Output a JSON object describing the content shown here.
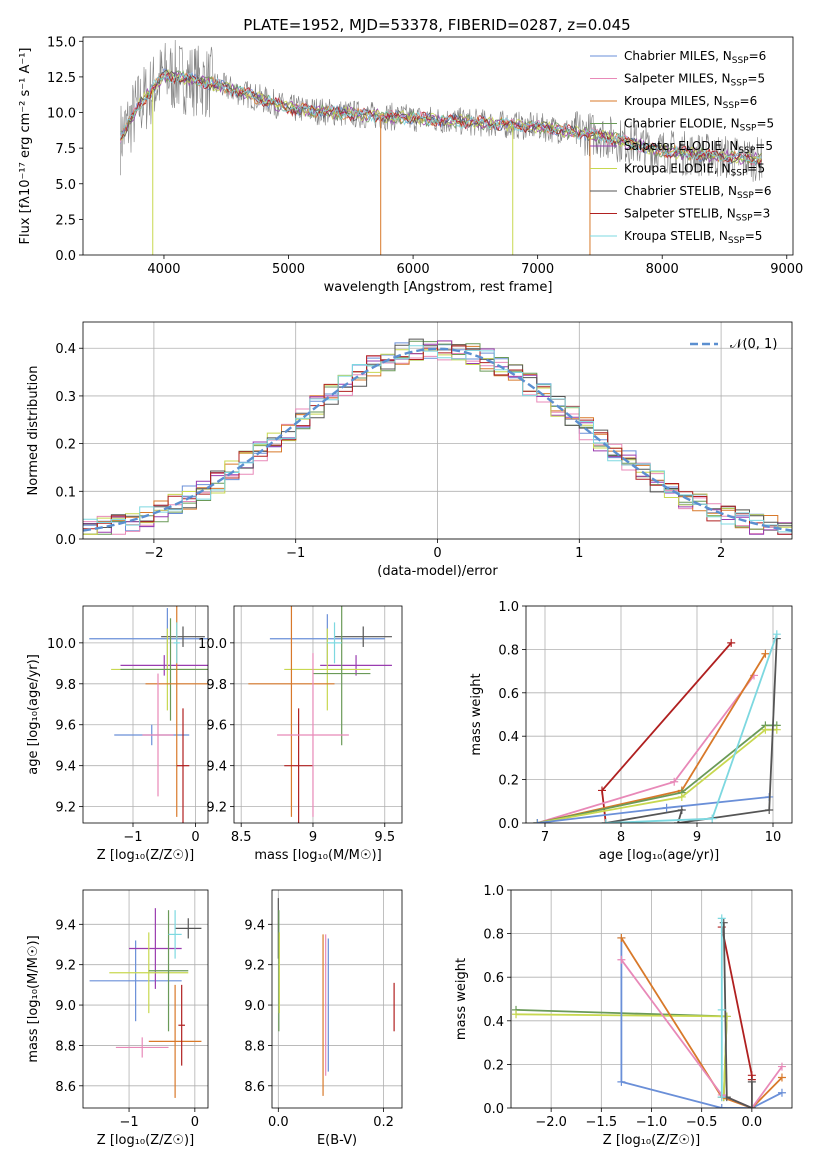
{
  "title": "PLATE=1952, MJD=53378, FIBERID=0287, z=0.045",
  "colors": {
    "cm": "#6a8fd8",
    "sm": "#e889b8",
    "km": "#d8792a",
    "ce": "#6a9a58",
    "se": "#9a3cb0",
    "ke": "#c8d850",
    "cs": "#555555",
    "ss": "#b02020",
    "ks": "#7dd8e0",
    "grid": "#b0b0b0",
    "obs": "#808080"
  },
  "chart_data": [
    {
      "id": "spectrum",
      "type": "line",
      "xlabel": "wavelength [Angstrom, rest frame]",
      "ylabel": "Flux [fλ10⁻¹⁷ erg cm⁻² s⁻¹ A⁻¹]",
      "xlim": [
        3350,
        9050
      ],
      "ylim": [
        0,
        15.3
      ],
      "xticks": [
        4000,
        5000,
        6000,
        7000,
        8000,
        9000
      ],
      "yticks": [
        0.0,
        2.5,
        5.0,
        7.5,
        10.0,
        12.5,
        15.0
      ],
      "grid": false,
      "legend_position": "top-right",
      "legend": [
        {
          "key": "cm",
          "label": "Chabrier MILES, N",
          "sub": "SSP",
          "tail": "=6"
        },
        {
          "key": "sm",
          "label": "Salpeter MILES, N",
          "sub": "SSP",
          "tail": "=5"
        },
        {
          "key": "km",
          "label": "Kroupa MILES, N",
          "sub": "SSP",
          "tail": "=6"
        },
        {
          "key": "ce",
          "label": "Chabrier ELODIE, N",
          "sub": "SSP",
          "tail": "=5"
        },
        {
          "key": "se",
          "label": "Salpeter ELODIE, N",
          "sub": "SSP",
          "tail": "=5"
        },
        {
          "key": "ke",
          "label": "Kroupa ELODIE, N",
          "sub": "SSP",
          "tail": "=5"
        },
        {
          "key": "cs",
          "label": "Chabrier STELIB, N",
          "sub": "SSP",
          "tail": "=6"
        },
        {
          "key": "ss",
          "label": "Salpeter STELIB, N",
          "sub": "SSP",
          "tail": "=3"
        },
        {
          "key": "ks",
          "label": "Kroupa STELIB, N",
          "sub": "SSP",
          "tail": "=5"
        }
      ],
      "continuum": [
        [
          3650,
          8.2
        ],
        [
          3800,
          10.5
        ],
        [
          4000,
          12.6
        ],
        [
          4200,
          12.4
        ],
        [
          4400,
          12.0
        ],
        [
          4700,
          11.2
        ],
        [
          5000,
          10.3
        ],
        [
          5500,
          9.9
        ],
        [
          6000,
          9.6
        ],
        [
          6500,
          9.3
        ],
        [
          7000,
          9.0
        ],
        [
          7500,
          8.4
        ],
        [
          8000,
          7.3
        ],
        [
          8500,
          6.9
        ],
        [
          8800,
          6.7
        ]
      ],
      "dips": [
        {
          "key": "ke",
          "x": 3910,
          "y": 0.0
        },
        {
          "key": "km",
          "x": 5740,
          "y": 0.0
        },
        {
          "key": "ke",
          "x": 6800,
          "y": 0.0
        },
        {
          "key": "km",
          "x": 7420,
          "y": 0.0
        }
      ]
    },
    {
      "id": "residuals",
      "type": "histogram",
      "xlabel": "(data-model)/error",
      "ylabel": "Normed distribution",
      "xlim": [
        -2.5,
        2.5
      ],
      "ylim": [
        0,
        0.455
      ],
      "xticks": [
        -2,
        -1,
        0,
        1,
        2
      ],
      "yticks": [
        0.0,
        0.1,
        0.2,
        0.3,
        0.4
      ],
      "grid": true,
      "legend_position": "top-right",
      "gauss_label": "𝒩(0, 1)",
      "bin_width": 0.1,
      "x_start": -2.5,
      "series_keys": [
        "cm",
        "sm",
        "km",
        "ce",
        "se",
        "ke",
        "cs",
        "ss",
        "ks"
      ]
    },
    {
      "id": "age_vs_z",
      "type": "errorbar",
      "xlabel": "Z [log₁₀(Z/Z☉)]",
      "ylabel": "age  [log₁₀(age/yr)]",
      "xlim": [
        -1.8,
        0.2
      ],
      "ylim": [
        9.12,
        10.18
      ],
      "xticks": [
        -1,
        0
      ],
      "yticks": [
        9.2,
        9.4,
        9.6,
        9.8,
        10.0
      ],
      "grid": true,
      "points": [
        {
          "key": "cm",
          "x": -0.45,
          "y": 10.02,
          "xerr": 1.25,
          "yerr": 0.15
        },
        {
          "key": "cm",
          "x": -0.7,
          "y": 9.55,
          "xerr": 0.6,
          "yerr": 0.05
        },
        {
          "key": "cs",
          "x": -0.2,
          "y": 10.03,
          "xerr": 0.35,
          "yerr": 0.05
        },
        {
          "key": "se",
          "x": -0.5,
          "y": 9.89,
          "xerr": 0.7,
          "yerr": 0.05
        },
        {
          "key": "ke",
          "x": -0.45,
          "y": 9.87,
          "xerr": 0.9,
          "yerr": 0.2
        },
        {
          "key": "ce",
          "x": -0.4,
          "y": 9.87,
          "xerr": 0.8,
          "yerr": 0.25
        },
        {
          "key": "km",
          "x": -0.3,
          "y": 9.8,
          "xerr": 0.5,
          "yerr": 0.65
        },
        {
          "key": "ss",
          "x": -0.2,
          "y": 9.4,
          "xerr": 0.1,
          "yerr": 0.28
        },
        {
          "key": "sm",
          "x": -0.6,
          "y": 9.55,
          "xerr": 0.25,
          "yerr": 0.3
        },
        {
          "key": "ks",
          "x": -0.3,
          "y": 10.0,
          "xerr": 0.05,
          "yerr": 0.1
        }
      ]
    },
    {
      "id": "age_vs_mass",
      "type": "errorbar",
      "xlabel": "mass [log₁₀(M/M☉)]",
      "ylabel": "",
      "xlim": [
        8.45,
        9.62
      ],
      "ylim": [
        9.12,
        10.18
      ],
      "xticks": [
        8.5,
        9.0,
        9.5
      ],
      "yticks": [
        9.2,
        9.4,
        9.6,
        9.8,
        10.0
      ],
      "grid": true,
      "points": [
        {
          "key": "cm",
          "x": 9.1,
          "y": 10.02,
          "xerr": 0.4,
          "yerr": 0.12
        },
        {
          "key": "cs",
          "x": 9.35,
          "y": 10.03,
          "xerr": 0.2,
          "yerr": 0.05
        },
        {
          "key": "se",
          "x": 9.3,
          "y": 9.89,
          "xerr": 0.25,
          "yerr": 0.05
        },
        {
          "key": "ke",
          "x": 9.1,
          "y": 9.87,
          "xerr": 0.3,
          "yerr": 0.2
        },
        {
          "key": "ce",
          "x": 9.2,
          "y": 9.85,
          "xerr": 0.2,
          "yerr": 0.35
        },
        {
          "key": "km",
          "x": 8.85,
          "y": 9.8,
          "xerr": 0.3,
          "yerr": 0.65
        },
        {
          "key": "ss",
          "x": 8.9,
          "y": 9.4,
          "xerr": 0.1,
          "yerr": 0.28
        },
        {
          "key": "sm",
          "x": 9.0,
          "y": 9.55,
          "xerr": 0.25,
          "yerr": 0.4
        },
        {
          "key": "ks",
          "x": 9.15,
          "y": 10.0,
          "xerr": 0.05,
          "yerr": 0.1
        }
      ]
    },
    {
      "id": "weight_vs_age",
      "type": "line",
      "xlabel": "age  [log₁₀(age/yr)]",
      "ylabel": "mass weight",
      "xlim": [
        6.75,
        10.25
      ],
      "ylim": [
        0.0,
        1.0
      ],
      "xticks": [
        7,
        8,
        9,
        10
      ],
      "yticks": [
        0.0,
        0.2,
        0.4,
        0.6,
        0.8,
        1.0
      ],
      "grid": true,
      "series": [
        {
          "key": "ss",
          "x": [
            7.8,
            7.75,
            9.45
          ],
          "y": [
            0.0,
            0.15,
            0.83
          ]
        },
        {
          "key": "sm",
          "x": [
            6.9,
            8.7,
            9.75
          ],
          "y": [
            0.0,
            0.19,
            0.68
          ]
        },
        {
          "key": "km",
          "x": [
            6.9,
            8.8,
            9.9
          ],
          "y": [
            0.0,
            0.15,
            0.78
          ]
        },
        {
          "key": "ce",
          "x": [
            6.9,
            8.8,
            9.9,
            10.05
          ],
          "y": [
            0.0,
            0.14,
            0.45,
            0.45
          ]
        },
        {
          "key": "ke",
          "x": [
            6.9,
            8.8,
            9.9,
            10.05
          ],
          "y": [
            0.0,
            0.12,
            0.43,
            0.43
          ]
        },
        {
          "key": "cm",
          "x": [
            6.9,
            8.6,
            9.95
          ],
          "y": [
            0.0,
            0.07,
            0.12
          ]
        },
        {
          "key": "cs",
          "x": [
            7.8,
            8.8,
            8.75,
            9.95,
            10.05
          ],
          "y": [
            0.0,
            0.06,
            0.0,
            0.06,
            0.85
          ]
        },
        {
          "key": "ks",
          "x": [
            7.8,
            9.2,
            10.05
          ],
          "y": [
            0.0,
            0.02,
            0.87
          ]
        }
      ]
    },
    {
      "id": "mass_vs_z",
      "type": "errorbar",
      "xlabel": "Z [log₁₀(Z/Z☉)]",
      "ylabel": "mass [log₁₀(M/M☉)]",
      "xlim": [
        -1.7,
        0.2
      ],
      "ylim": [
        8.49,
        9.57
      ],
      "xticks": [
        -1,
        0
      ],
      "yticks": [
        8.6,
        8.8,
        9.0,
        9.2,
        9.4
      ],
      "grid": true,
      "points": [
        {
          "key": "cm",
          "x": -0.9,
          "y": 9.12,
          "xerr": 0.7,
          "yerr": 0.2
        },
        {
          "key": "cs",
          "x": -0.1,
          "y": 9.38,
          "xerr": 0.2,
          "yerr": 0.05
        },
        {
          "key": "se",
          "x": -0.6,
          "y": 9.28,
          "xerr": 0.4,
          "yerr": 0.2
        },
        {
          "key": "ke",
          "x": -0.7,
          "y": 9.16,
          "xerr": 0.6,
          "yerr": 0.2
        },
        {
          "key": "ce",
          "x": -0.4,
          "y": 9.17,
          "xerr": 0.3,
          "yerr": 0.3
        },
        {
          "key": "km",
          "x": -0.3,
          "y": 8.82,
          "xerr": 0.4,
          "yerr": 0.28
        },
        {
          "key": "ss",
          "x": -0.2,
          "y": 8.9,
          "xerr": 0.05,
          "yerr": 0.2
        },
        {
          "key": "sm",
          "x": -0.8,
          "y": 8.79,
          "xerr": 0.4,
          "yerr": 0.05
        },
        {
          "key": "ks",
          "x": -0.3,
          "y": 9.35,
          "xerr": 0.1,
          "yerr": 0.12
        }
      ]
    },
    {
      "id": "mass_vs_ebv",
      "type": "errorbar",
      "xlabel": "E(B-V)",
      "ylabel": "",
      "xlim": [
        -0.012,
        0.235
      ],
      "ylim": [
        8.49,
        9.57
      ],
      "xticks": [
        0.0,
        0.2
      ],
      "yticks": [
        8.6,
        8.8,
        9.0,
        9.2,
        9.4
      ],
      "grid": true,
      "points": [
        {
          "key": "cs",
          "x": 0.0,
          "y": 9.38,
          "xerr": 0.0,
          "yerr": 0.15
        },
        {
          "key": "ce",
          "x": 0.001,
          "y": 9.17,
          "xerr": 0.0,
          "yerr": 0.3
        },
        {
          "key": "ke",
          "x": 0.002,
          "y": 9.16,
          "xerr": 0.0,
          "yerr": 0.2
        },
        {
          "key": "km",
          "x": 0.085,
          "y": 8.95,
          "xerr": 0.0,
          "yerr": 0.4
        },
        {
          "key": "sm",
          "x": 0.09,
          "y": 9.0,
          "xerr": 0.0,
          "yerr": 0.35
        },
        {
          "key": "cm",
          "x": 0.095,
          "y": 9.0,
          "xerr": 0.0,
          "yerr": 0.33
        },
        {
          "key": "ss",
          "x": 0.22,
          "y": 8.99,
          "xerr": 0.0,
          "yerr": 0.12
        }
      ]
    },
    {
      "id": "weight_vs_z",
      "type": "line",
      "xlabel": "Z [log₁₀(Z/Z☉)]",
      "ylabel": "mass weight",
      "xlim": [
        -2.4,
        0.4
      ],
      "ylim": [
        0.0,
        1.0
      ],
      "xticks": [
        -2.0,
        -1.5,
        -1.0,
        -0.5,
        0.0
      ],
      "yticks": [
        0.0,
        0.2,
        0.4,
        0.6,
        0.8,
        1.0
      ],
      "grid": true,
      "series": [
        {
          "key": "ce",
          "x": [
            -2.35,
            -0.25,
            -0.28,
            0.0
          ],
          "y": [
            0.45,
            0.42,
            0.05,
            0.0
          ]
        },
        {
          "key": "ke",
          "x": [
            -2.35,
            -0.25,
            -0.28,
            0.0
          ],
          "y": [
            0.43,
            0.42,
            0.05,
            0.0
          ]
        },
        {
          "key": "cm",
          "x": [
            -1.3,
            -1.3,
            -0.3,
            0.0,
            0.3
          ],
          "y": [
            0.78,
            0.12,
            0.0,
            0.0,
            0.07
          ]
        },
        {
          "key": "km",
          "x": [
            -1.3,
            -0.3,
            0.0,
            0.3
          ],
          "y": [
            0.78,
            0.05,
            0.0,
            0.14
          ]
        },
        {
          "key": "sm",
          "x": [
            -1.3,
            -0.3,
            0.0,
            0.3
          ],
          "y": [
            0.68,
            0.06,
            0.0,
            0.19
          ]
        },
        {
          "key": "ss",
          "x": [
            -0.3,
            0.0,
            0.0
          ],
          "y": [
            0.83,
            0.15,
            0.13
          ]
        },
        {
          "key": "cs",
          "x": [
            -0.28,
            -0.25,
            0.0,
            0.0
          ],
          "y": [
            0.85,
            0.05,
            0.0,
            0.12
          ]
        },
        {
          "key": "ks",
          "x": [
            -0.3,
            -0.3,
            -0.3
          ],
          "y": [
            0.87,
            0.45,
            0.05
          ]
        }
      ]
    }
  ]
}
